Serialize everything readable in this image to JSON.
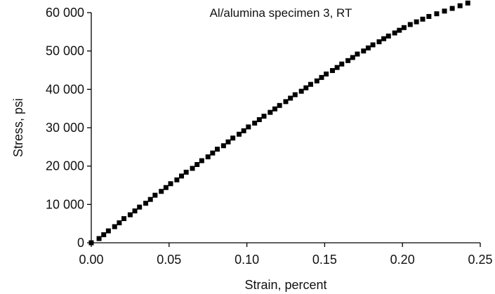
{
  "chart_data": {
    "type": "scatter",
    "title": "Al/alumina specimen 3, RT",
    "xlabel": "Strain, percent",
    "ylabel": "Stress, psi",
    "xlim": [
      0,
      0.25
    ],
    "ylim": [
      0,
      60000
    ],
    "x_ticks": [
      "0.00",
      "0.05",
      "0.10",
      "0.15",
      "0.20",
      "0.25"
    ],
    "y_ticks": [
      "0",
      "10 000",
      "20 000",
      "30 000",
      "40 000",
      "50 000",
      "60 000"
    ],
    "x_tick_values": [
      0,
      0.05,
      0.1,
      0.15,
      0.2,
      0.25
    ],
    "y_tick_values": [
      0,
      10000,
      20000,
      30000,
      40000,
      50000,
      60000
    ],
    "grid": false,
    "marker": "square",
    "marker_color": "#000000",
    "series": [
      {
        "x": [
          0.0,
          0.005,
          0.008,
          0.011,
          0.015,
          0.018,
          0.021,
          0.025,
          0.028,
          0.031,
          0.035,
          0.038,
          0.041,
          0.045,
          0.048,
          0.051,
          0.055,
          0.058,
          0.061,
          0.065,
          0.068,
          0.071,
          0.075,
          0.078,
          0.081,
          0.085,
          0.088,
          0.091,
          0.095,
          0.098,
          0.101,
          0.105,
          0.108,
          0.111,
          0.115,
          0.118,
          0.121,
          0.125,
          0.128,
          0.131,
          0.135,
          0.138,
          0.141,
          0.145,
          0.148,
          0.151,
          0.155,
          0.158,
          0.161,
          0.165,
          0.168,
          0.171,
          0.175,
          0.178,
          0.181,
          0.185,
          0.188,
          0.191,
          0.195,
          0.198,
          0.201,
          0.205,
          0.209,
          0.213,
          0.217,
          0.222,
          0.227,
          0.232,
          0.237,
          0.242
        ],
        "y": [
          0,
          1100,
          2100,
          3100,
          4200,
          5200,
          6300,
          7300,
          8300,
          9300,
          10300,
          11300,
          12400,
          13400,
          14400,
          15400,
          16400,
          17400,
          18400,
          19400,
          20400,
          21400,
          22400,
          23400,
          24400,
          25300,
          26300,
          27300,
          28300,
          29200,
          30200,
          31200,
          32100,
          33000,
          34000,
          34900,
          35800,
          36800,
          37700,
          38600,
          39500,
          40400,
          41300,
          42200,
          43100,
          44000,
          44900,
          45700,
          46600,
          47500,
          48300,
          49200,
          50000,
          50800,
          51600,
          52400,
          53200,
          53900,
          54700,
          55400,
          56100,
          56900,
          57600,
          58300,
          59000,
          59700,
          60400,
          61100,
          61800,
          62500
        ]
      }
    ]
  }
}
